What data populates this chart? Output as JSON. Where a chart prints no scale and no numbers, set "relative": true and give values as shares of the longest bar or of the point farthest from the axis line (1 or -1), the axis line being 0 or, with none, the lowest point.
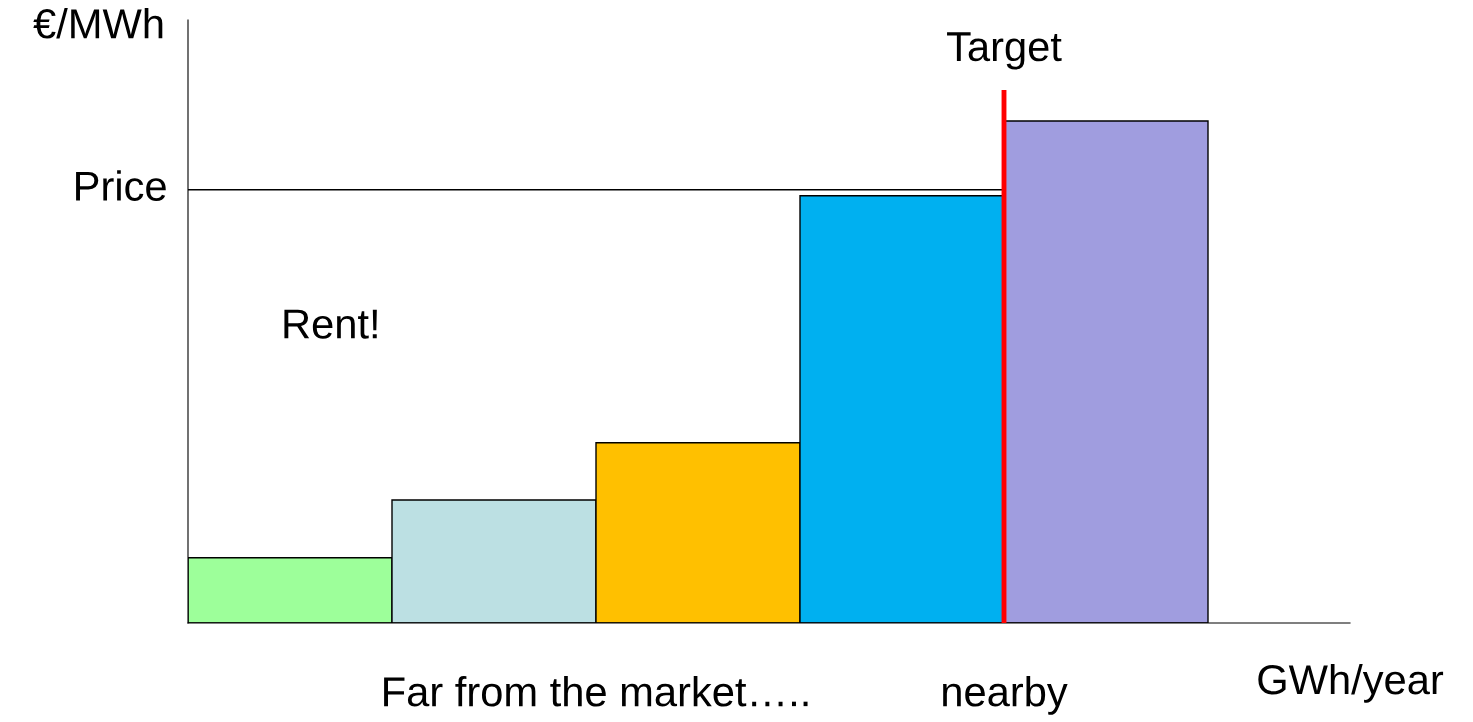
{
  "chart_data": {
    "type": "bar",
    "relative": true,
    "xlabel": "GWh/year",
    "ylabel": "€/MWh",
    "categories": [
      null,
      null,
      null,
      null,
      null
    ],
    "values": [
      0.13,
      0.245,
      0.359,
      0.851,
      1
    ],
    "colors": [
      "#9dff9a",
      "#bce0e3",
      "#ffc000",
      "#00b0f0",
      "#a09ddf"
    ],
    "ref_lines": [
      {
        "axis": "y",
        "value": 0.863,
        "label": "Price",
        "color": "#000000"
      }
    ],
    "annotations": [
      "Rent!",
      "Far from the market…..",
      "nearby",
      "Target"
    ],
    "grid": false,
    "legend": false
  }
}
